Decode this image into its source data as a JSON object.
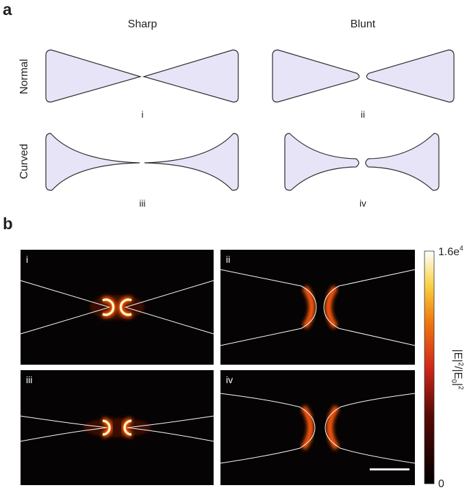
{
  "panel_a": {
    "label": "a",
    "columns": [
      "Sharp",
      "Blunt"
    ],
    "rows": [
      "Normal",
      "Curved"
    ],
    "subpanels": [
      "i",
      "ii",
      "iii",
      "iv"
    ]
  },
  "panel_b": {
    "label": "b",
    "subpanels": [
      "i",
      "ii",
      "iii",
      "iv"
    ],
    "colorbar": {
      "max": {
        "base": "1.6e",
        "exponent": "4"
      },
      "min": 0,
      "label": [
        "|E|",
        "2",
        "/|E",
        "0",
        "|",
        "2"
      ]
    }
  }
}
